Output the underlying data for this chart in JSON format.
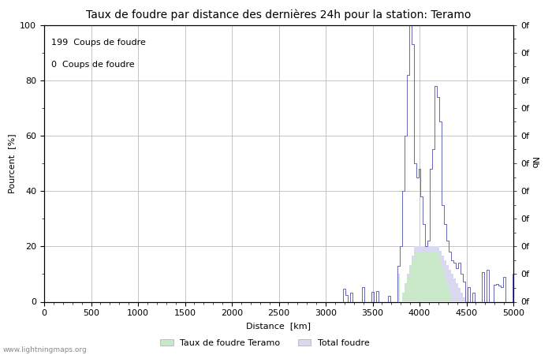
{
  "title": "Taux de foudre par distance des dernières 24h pour la station: Teramo",
  "ylabel_left": "Pourcent  [%]",
  "ylabel_right": "Nb",
  "xlabel": "Distance  [km]",
  "annotation_line1": "199  Coups de foudre",
  "annotation_line2": "0  Coups de foudre",
  "legend_label1": "Taux de foudre Teramo",
  "legend_label2": "Total foudre",
  "watermark": "www.lightningmaps.org",
  "xlim": [
    0,
    5000
  ],
  "ylim": [
    0,
    100
  ],
  "right_ytick_labels": [
    "0f",
    "0f",
    "0f",
    "0f",
    "0f",
    "0f",
    "0f",
    "0f",
    "0f",
    "0f",
    "0f"
  ],
  "right_ytick_positions": [
    0,
    10,
    20,
    30,
    40,
    50,
    60,
    70,
    80,
    90,
    100
  ],
  "xticks": [
    0,
    500,
    1000,
    1500,
    2000,
    2500,
    3000,
    3500,
    4000,
    4500,
    5000
  ],
  "yticks": [
    0,
    20,
    40,
    60,
    80,
    100
  ],
  "grid_color": "#bbbbbb",
  "line_color": "#6666bb",
  "fill_color_total": "#d8d8f0",
  "fill_color_teramo": "#c8e8c8",
  "bg_color": "#ffffff",
  "title_fontsize": 10,
  "axis_label_fontsize": 8,
  "tick_fontsize": 8,
  "annotation_fontsize": 8,
  "legend_color1": "#c8e8c8",
  "legend_color2": "#d8d8f0"
}
